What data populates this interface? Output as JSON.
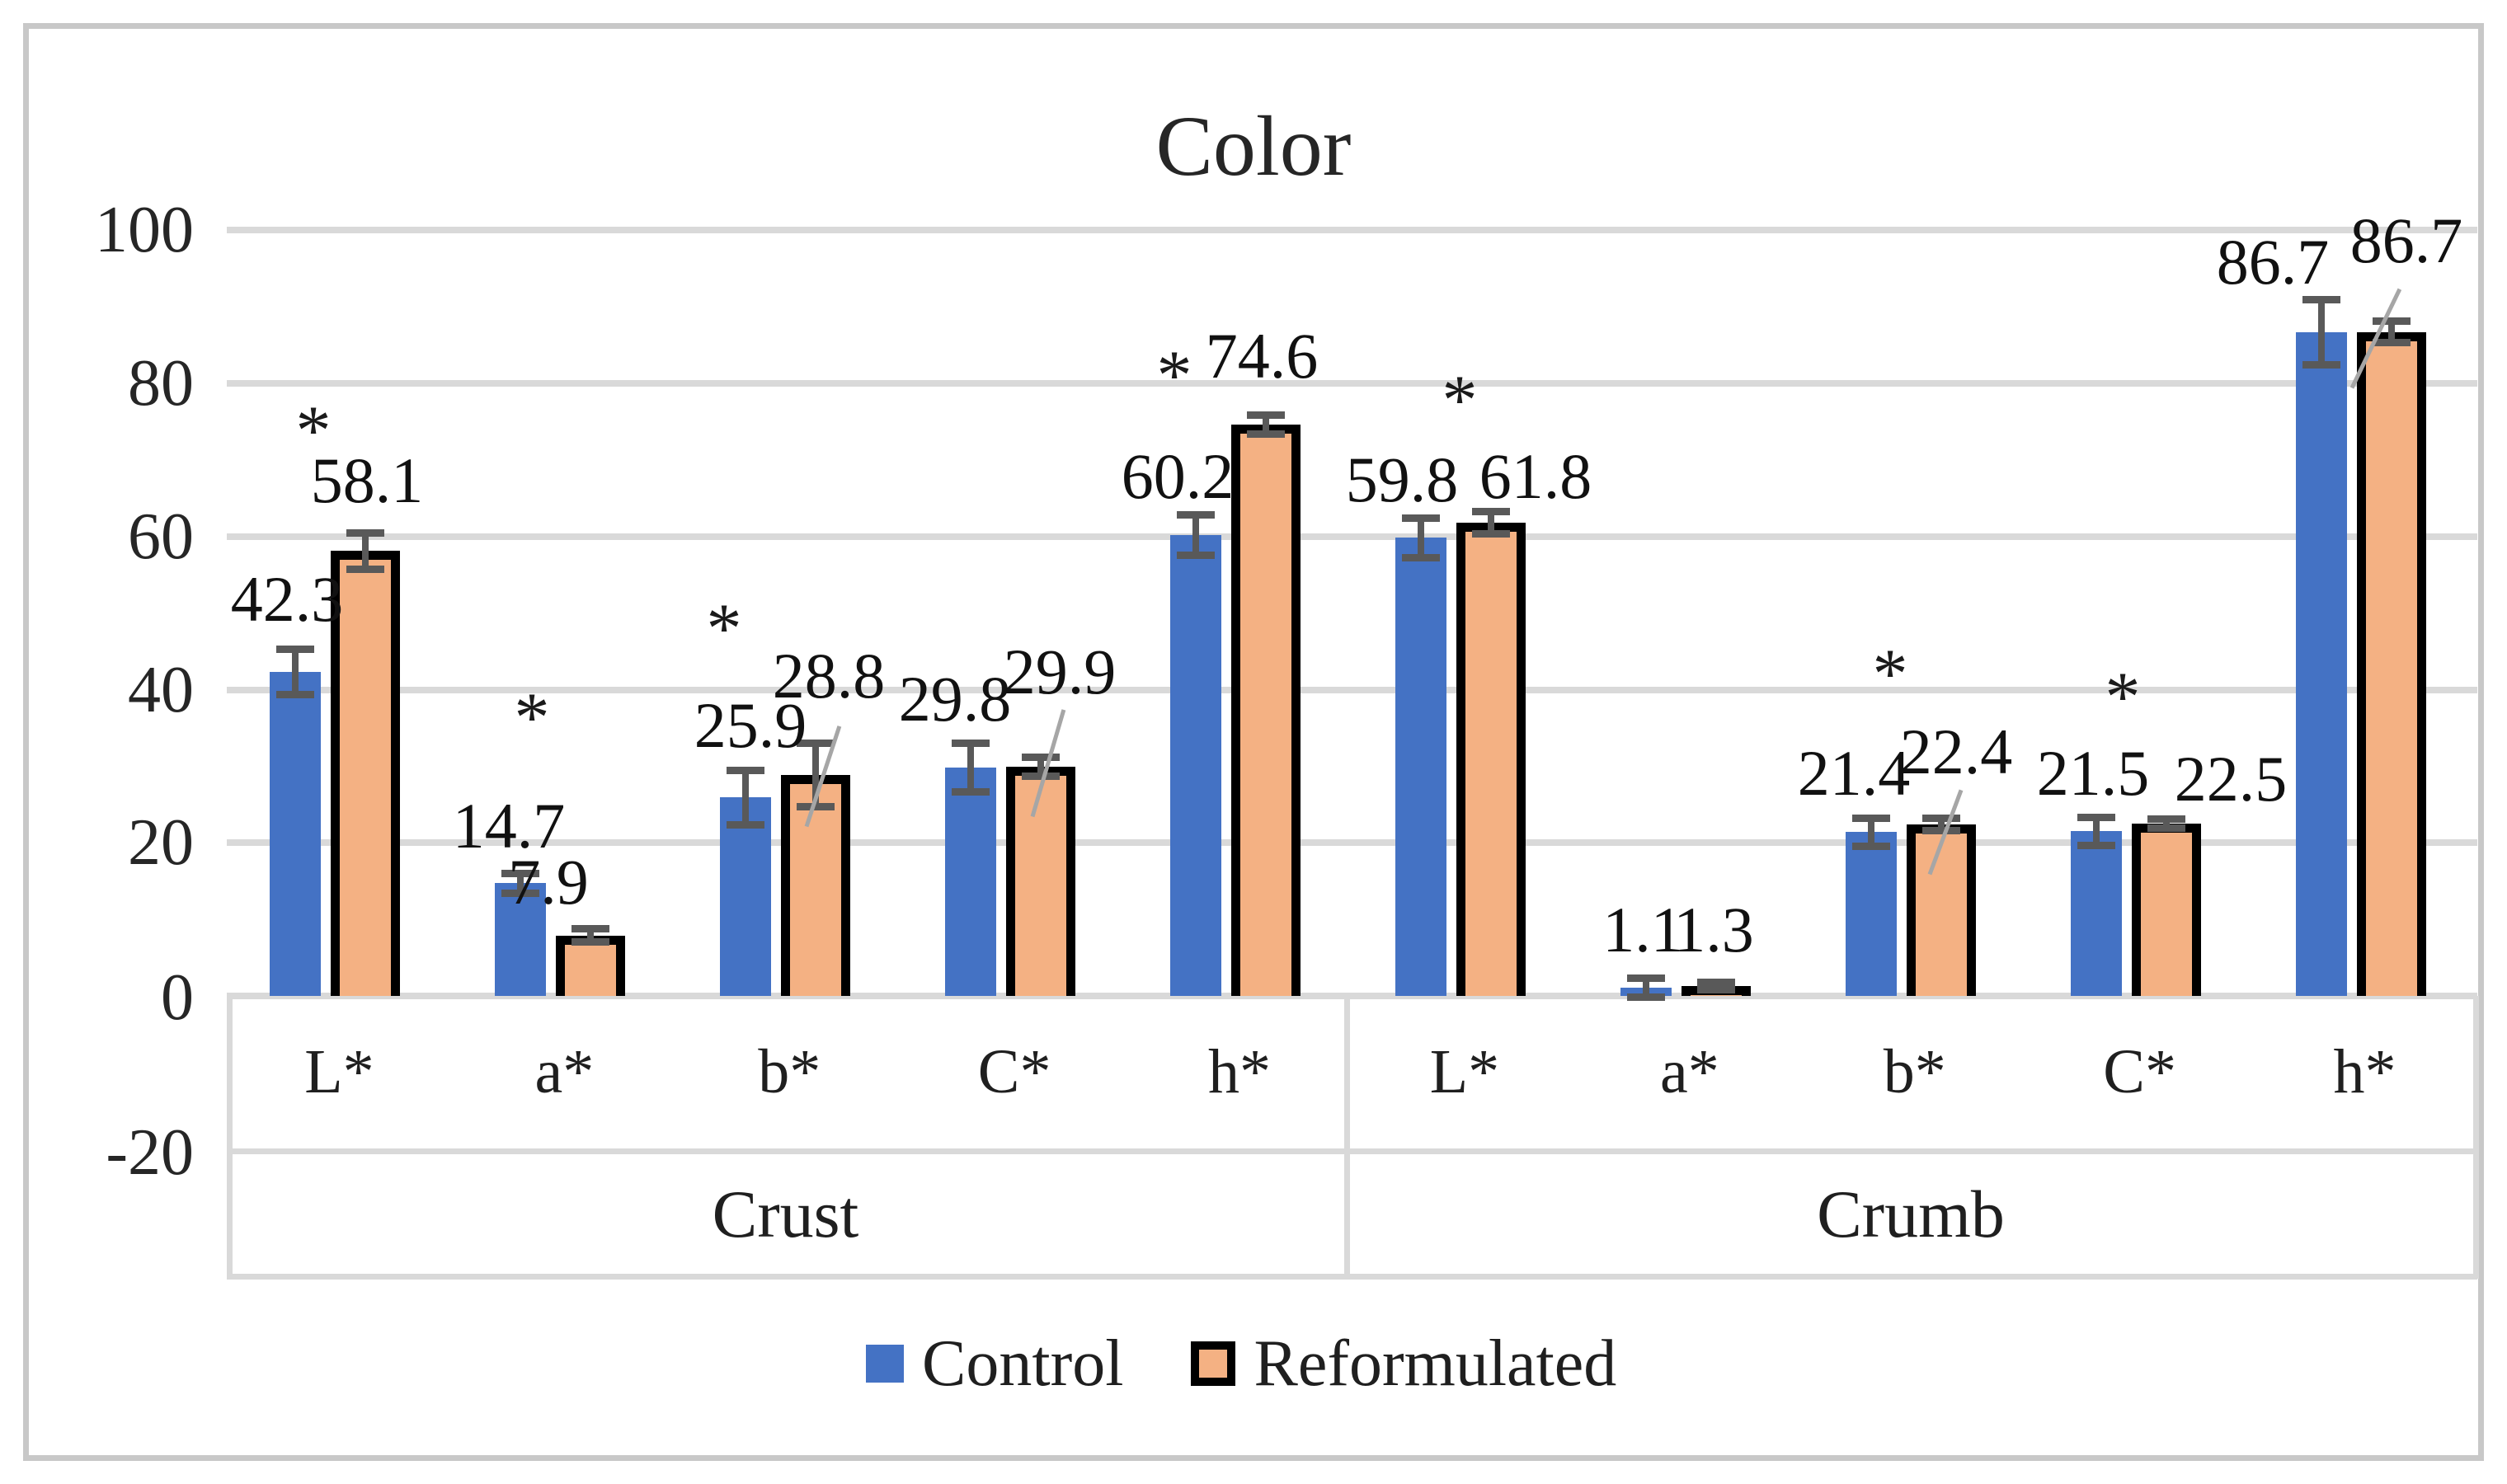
{
  "title": "Color",
  "y_axis": {
    "tick_labels": [
      "100",
      "80",
      "60",
      "40",
      "20",
      "0",
      "-20"
    ]
  },
  "x_axis": {
    "groups": [
      "Crust",
      "Crumb"
    ],
    "categories": [
      "L*",
      "a*",
      "b*",
      "C*",
      "h*"
    ]
  },
  "legend": {
    "items": [
      "Control",
      "Reformulated"
    ]
  },
  "symbols": {
    "significance": "*"
  },
  "colors": {
    "control": "#4472C4",
    "reformulated_fill": "#F4B183",
    "reformulated_border": "#000000",
    "gridline": "#D9D9D9",
    "error_bar": "#595959",
    "leader_line": "#A6A6A6",
    "frame": "#C8C8C8",
    "text": "#1F1F1F"
  },
  "chart_data": {
    "type": "bar",
    "title": "Color",
    "ylim": [
      -20,
      100
    ],
    "y_tick_step": 20,
    "grid": true,
    "legend_position": "bottom",
    "group_labels": [
      "Crust",
      "Crumb"
    ],
    "categories": [
      "L*",
      "a*",
      "b*",
      "C*",
      "h*"
    ],
    "x_categories": [
      "Crust L*",
      "Crust a*",
      "Crust b*",
      "Crust C*",
      "Crust h*",
      "Crumb L*",
      "Crumb a*",
      "Crumb b*",
      "Crumb C*",
      "Crumb h*"
    ],
    "series": [
      {
        "name": "Control",
        "color": "#4472C4",
        "values": [
          42.3,
          14.7,
          25.9,
          29.8,
          60.2,
          59.8,
          1.1,
          21.4,
          21.5,
          86.7
        ],
        "error_bars": [
          3.0,
          1.3,
          3.6,
          3.2,
          2.7,
          2.6,
          1.3,
          1.9,
          1.9,
          4.3
        ]
      },
      {
        "name": "Reformulated",
        "color": "#F4B183",
        "values": [
          58.1,
          7.9,
          28.8,
          29.9,
          74.6,
          61.8,
          1.3,
          22.4,
          22.5,
          86.7
        ],
        "error_bars": [
          2.4,
          0.9,
          4.2,
          1.3,
          1.3,
          1.5,
          0.5,
          0.9,
          0.6,
          1.5
        ]
      }
    ],
    "data_labels_shown": true,
    "significant_categories": [
      "Crust L*",
      "Crust a*",
      "Crust b*",
      "Crust h*",
      "Crumb L*",
      "Crumb b*",
      "Crumb C*"
    ]
  }
}
